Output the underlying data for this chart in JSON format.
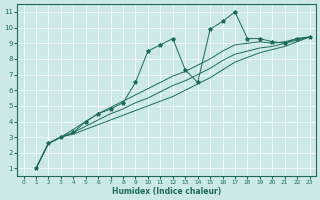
{
  "xlabel": "Humidex (Indice chaleur)",
  "bg_color": "#cce8e8",
  "line_color": "#1a6b5a",
  "grid_color": "#ffffff",
  "xlim": [
    -0.5,
    23.5
  ],
  "ylim": [
    0.5,
    11.5
  ],
  "xticks": [
    0,
    1,
    2,
    3,
    4,
    5,
    6,
    7,
    8,
    9,
    10,
    11,
    12,
    13,
    14,
    15,
    16,
    17,
    18,
    19,
    20,
    21,
    22,
    23
  ],
  "yticks": [
    1,
    2,
    3,
    4,
    5,
    6,
    7,
    8,
    9,
    10,
    11
  ],
  "lines": [
    {
      "x": [
        1,
        2,
        3,
        4,
        5,
        6,
        7,
        8,
        9,
        10,
        11,
        12,
        13,
        14,
        15,
        16,
        17,
        18,
        19,
        20,
        21,
        22,
        23
      ],
      "y": [
        1.0,
        2.6,
        3.0,
        3.3,
        4.0,
        4.5,
        4.8,
        5.2,
        6.5,
        8.5,
        8.9,
        9.3,
        7.3,
        6.5,
        9.9,
        10.4,
        11.0,
        9.3,
        9.3,
        9.1,
        9.0,
        9.3,
        9.4
      ],
      "marker": true
    },
    {
      "x": [
        1,
        2,
        3,
        4,
        5,
        6,
        7,
        8,
        9,
        10,
        11,
        12,
        13,
        14,
        15,
        16,
        17,
        18,
        19,
        20,
        21,
        22,
        23
      ],
      "y": [
        1.0,
        2.6,
        3.0,
        3.2,
        3.5,
        3.8,
        4.1,
        4.4,
        4.7,
        5.0,
        5.3,
        5.6,
        6.0,
        6.4,
        6.8,
        7.3,
        7.8,
        8.1,
        8.4,
        8.6,
        8.8,
        9.1,
        9.4
      ],
      "marker": false
    },
    {
      "x": [
        1,
        2,
        3,
        4,
        5,
        6,
        7,
        8,
        9,
        10,
        11,
        12,
        13,
        14,
        15,
        16,
        17,
        18,
        19,
        20,
        21,
        22,
        23
      ],
      "y": [
        1.0,
        2.6,
        3.0,
        3.3,
        3.7,
        4.1,
        4.5,
        4.8,
        5.2,
        5.5,
        5.9,
        6.3,
        6.6,
        7.0,
        7.4,
        7.9,
        8.3,
        8.5,
        8.7,
        8.8,
        9.0,
        9.2,
        9.4
      ],
      "marker": false
    },
    {
      "x": [
        1,
        2,
        3,
        4,
        5,
        6,
        7,
        8,
        9,
        10,
        11,
        12,
        13,
        14,
        15,
        16,
        17,
        18,
        19,
        20,
        21,
        22,
        23
      ],
      "y": [
        1.0,
        2.6,
        3.0,
        3.5,
        4.0,
        4.5,
        4.9,
        5.3,
        5.7,
        6.1,
        6.5,
        6.9,
        7.2,
        7.6,
        8.0,
        8.5,
        8.9,
        9.0,
        9.1,
        9.0,
        9.1,
        9.3,
        9.4
      ],
      "marker": false
    }
  ]
}
